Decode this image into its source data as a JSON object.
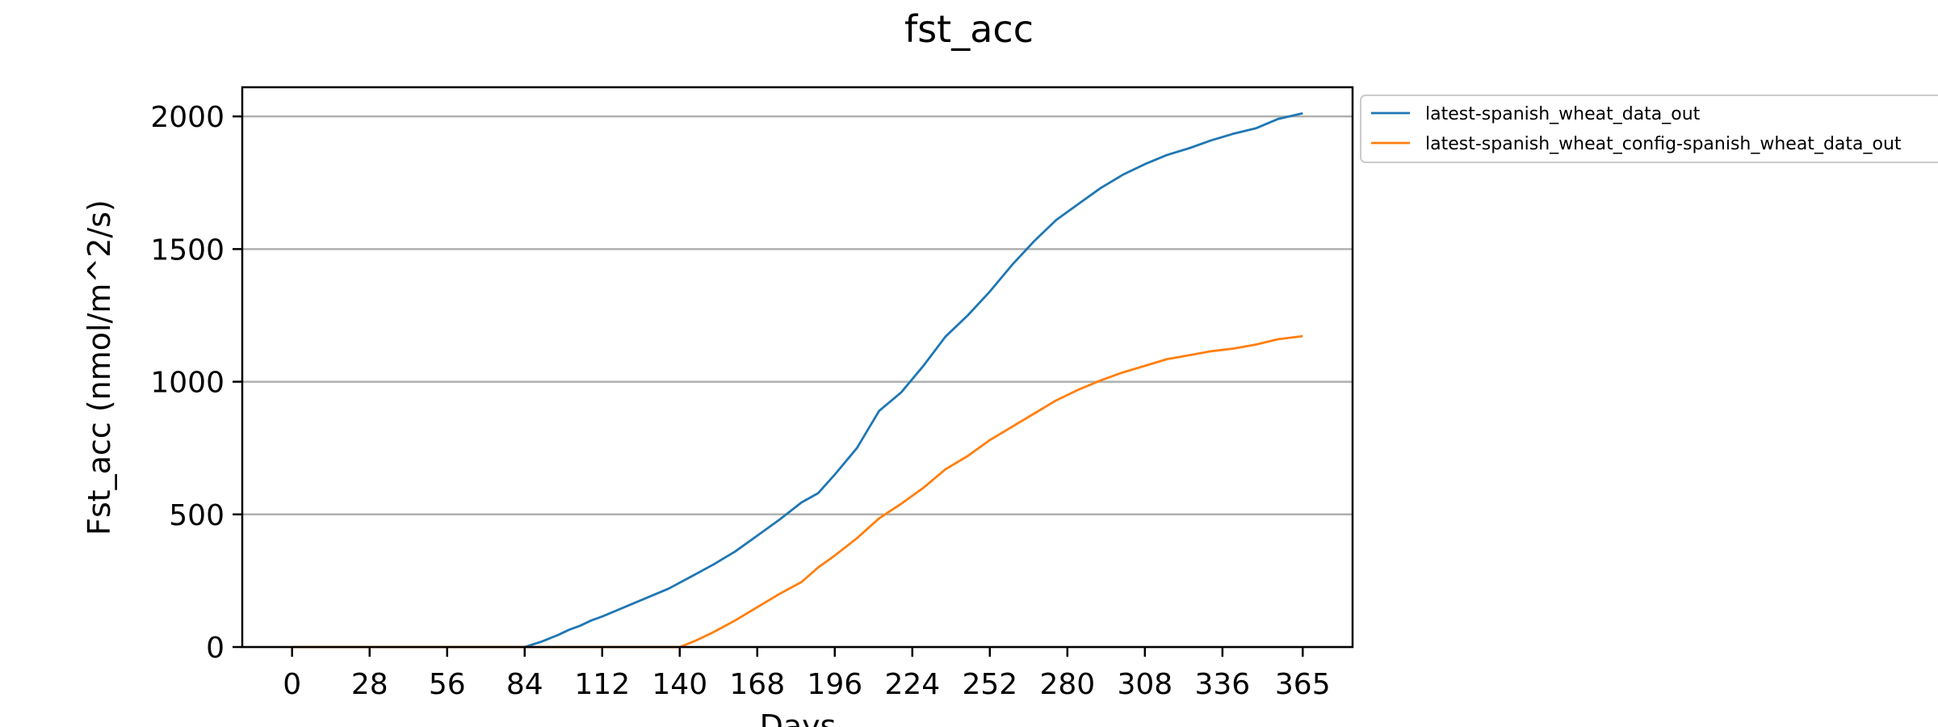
{
  "chart_data": {
    "type": "line",
    "title": "fst_acc",
    "xlabel": "Days",
    "ylabel": "Fst_acc (nmol/m^2/s)",
    "xlim": [
      -18,
      383
    ],
    "ylim": [
      0,
      2110
    ],
    "xticks": [
      0,
      28,
      56,
      84,
      112,
      140,
      168,
      196,
      224,
      252,
      280,
      308,
      336,
      365
    ],
    "yticks": [
      0,
      500,
      1000,
      1500,
      2000
    ],
    "grid": "horizontal",
    "legend_position": "outside-top-right",
    "series": [
      {
        "name": "latest-spanish_wheat_data_out",
        "color": "#1f77b4",
        "x": [
          0,
          84,
          90,
          96,
          100,
          104,
          108,
          112,
          120,
          128,
          136,
          144,
          152,
          160,
          168,
          176,
          184,
          190,
          196,
          204,
          212,
          220,
          228,
          236,
          244,
          252,
          260,
          268,
          276,
          284,
          292,
          300,
          308,
          316,
          324,
          332,
          340,
          348,
          356,
          365
        ],
        "y": [
          0,
          0,
          20,
          45,
          65,
          80,
          100,
          115,
          150,
          185,
          220,
          265,
          310,
          360,
          420,
          480,
          545,
          580,
          650,
          750,
          890,
          960,
          1060,
          1170,
          1250,
          1340,
          1440,
          1530,
          1610,
          1670,
          1730,
          1780,
          1820,
          1855,
          1880,
          1910,
          1935,
          1955,
          1990,
          2012
        ]
      },
      {
        "name": "latest-spanish_wheat_config-spanish_wheat_data_out",
        "color": "#ff7f0e",
        "x": [
          0,
          140,
          146,
          152,
          160,
          168,
          176,
          184,
          190,
          196,
          204,
          212,
          220,
          228,
          236,
          244,
          252,
          260,
          268,
          276,
          284,
          292,
          300,
          308,
          316,
          324,
          332,
          340,
          348,
          356,
          365
        ],
        "y": [
          0,
          0,
          25,
          55,
          100,
          150,
          200,
          245,
          300,
          345,
          410,
          485,
          540,
          600,
          670,
          720,
          780,
          830,
          880,
          930,
          970,
          1005,
          1035,
          1060,
          1085,
          1100,
          1115,
          1125,
          1140,
          1160,
          1172
        ]
      }
    ]
  }
}
